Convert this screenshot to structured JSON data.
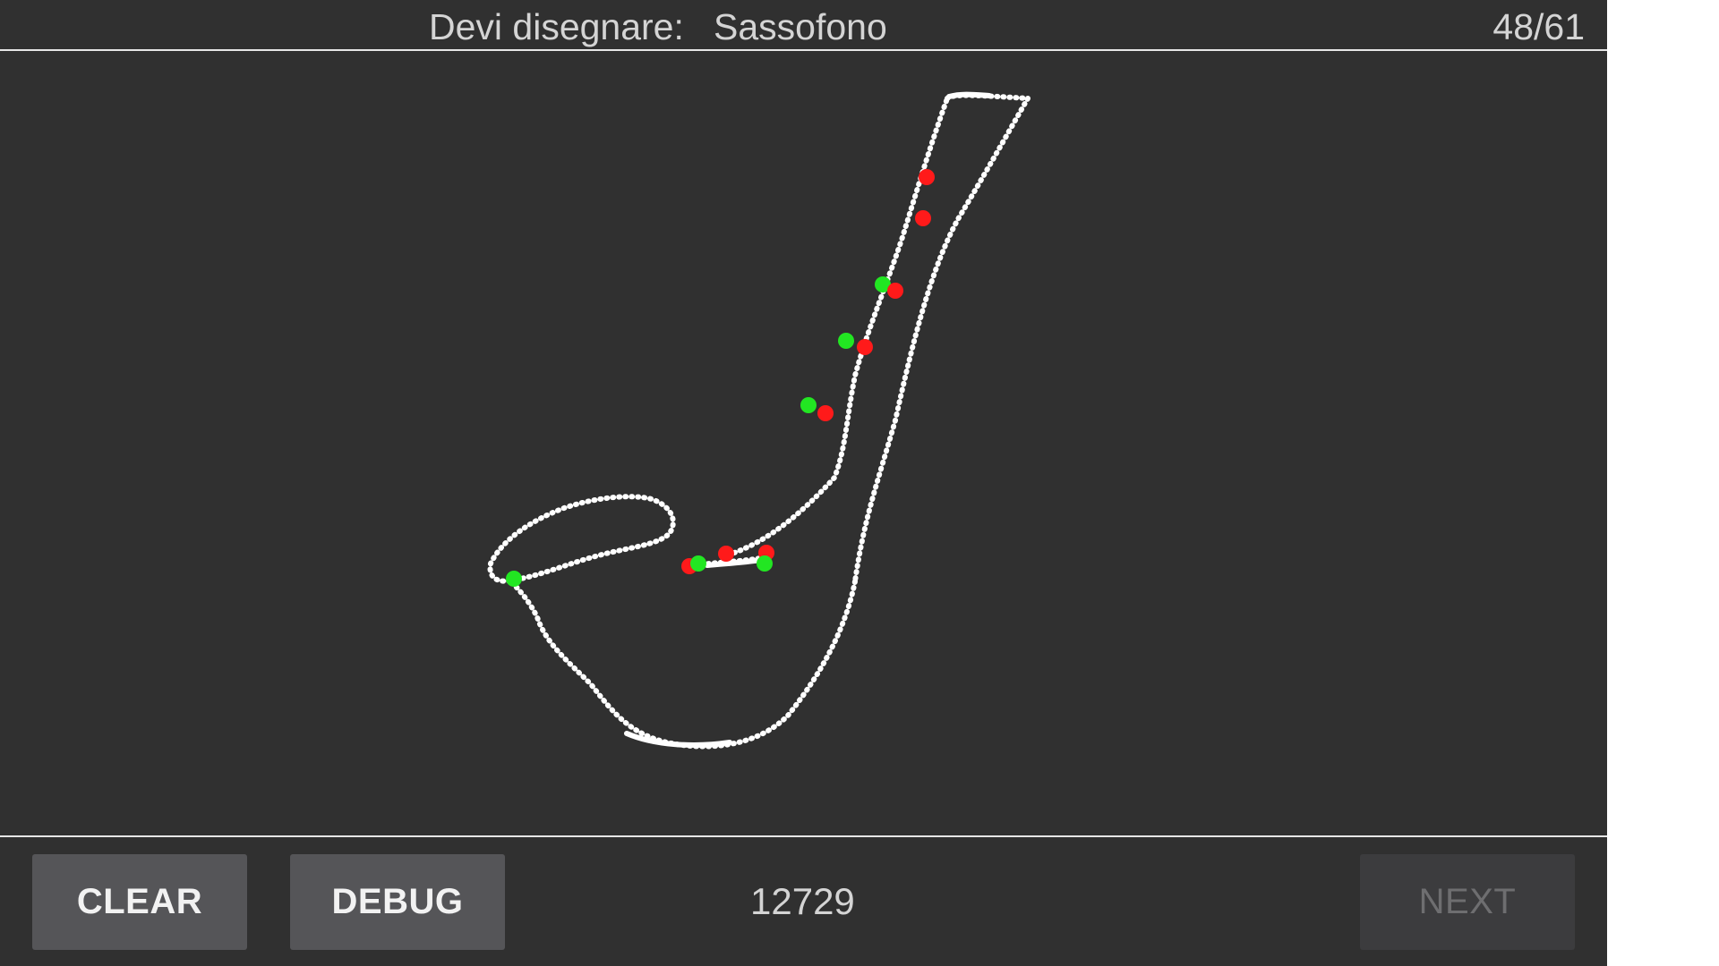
{
  "header": {
    "prompt_label": "Devi disegnare:",
    "prompt_word": "Sassofono",
    "progress": "48/61"
  },
  "footer": {
    "clear_label": "CLEAR",
    "debug_label": "DEBUG",
    "score": "12729",
    "next_label": "NEXT"
  },
  "colors": {
    "background": "#303030",
    "stroke": "#ffffff",
    "marker_red": "#ff1a1a",
    "marker_green": "#22e622",
    "button": "#555558",
    "button_disabled": "#3c3c3e"
  }
}
